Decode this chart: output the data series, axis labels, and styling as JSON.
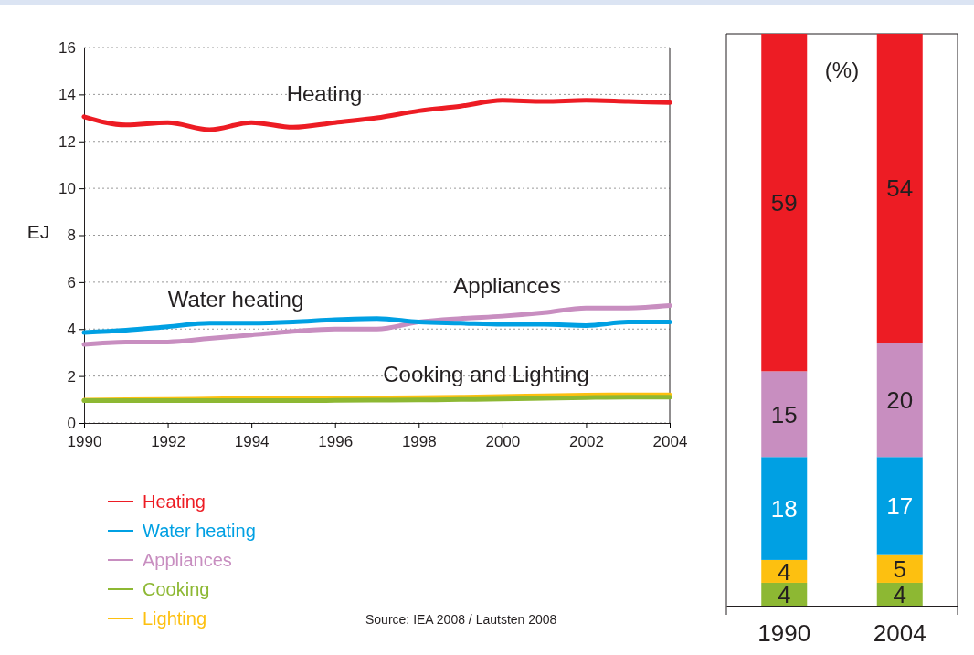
{
  "chart_data": [
    {
      "type": "line",
      "ylabel": "EJ",
      "x": [
        1990,
        1991,
        1992,
        1993,
        1994,
        1995,
        1996,
        1997,
        1998,
        1999,
        2000,
        2001,
        2002,
        2003,
        2004
      ],
      "xlim": [
        1990,
        2004
      ],
      "xticks": [
        1990,
        1992,
        1994,
        1996,
        1998,
        2000,
        2002,
        2004
      ],
      "ylim": [
        0,
        16
      ],
      "yticks": [
        0,
        2,
        4,
        6,
        8,
        10,
        12,
        14,
        16
      ],
      "grid": "y",
      "legend": "bottom",
      "line_style": "solid",
      "marker": "none",
      "series": [
        {
          "name": "Heating",
          "color": "#ed1c24",
          "values": [
            13.05,
            12.7,
            12.8,
            12.5,
            12.8,
            12.6,
            12.8,
            13.0,
            13.3,
            13.5,
            13.75,
            13.7,
            13.75,
            13.7,
            13.65
          ]
        },
        {
          "name": "Water heating",
          "color": "#00a0e3",
          "values": [
            3.85,
            3.95,
            4.1,
            4.25,
            4.25,
            4.3,
            4.4,
            4.45,
            4.3,
            4.25,
            4.2,
            4.2,
            4.15,
            4.3,
            4.3
          ]
        },
        {
          "name": "Appliances",
          "color": "#c88ec0",
          "values": [
            3.35,
            3.45,
            3.45,
            3.6,
            3.75,
            3.9,
            4.0,
            4.0,
            4.3,
            4.45,
            4.55,
            4.7,
            4.9,
            4.9,
            5.0
          ]
        },
        {
          "name": "Cooking",
          "color": "#8db833",
          "values": [
            0.95,
            0.95,
            0.95,
            0.95,
            0.95,
            0.95,
            0.96,
            0.97,
            0.98,
            1.0,
            1.02,
            1.05,
            1.08,
            1.1,
            1.1
          ]
        },
        {
          "name": "Lighting",
          "color": "#fdc010",
          "values": [
            0.97,
            0.99,
            1.0,
            1.02,
            1.04,
            1.05,
            1.06,
            1.07,
            1.08,
            1.1,
            1.13,
            1.16,
            1.19,
            1.2,
            1.2
          ]
        }
      ],
      "annotations": [
        "Heating",
        "Water heating",
        "Appliances",
        "Cooking and Lighting",
        "Source: IEA 2008 / Lautsten 2008"
      ]
    },
    {
      "type": "bar",
      "stacked": true,
      "categories": [
        "1990",
        "2004"
      ],
      "ylim": [
        0,
        100
      ],
      "tick_labels": "x",
      "data_labels": true,
      "ylabel": "(%)",
      "series": [
        {
          "color": "#8db833",
          "values": [
            4,
            4
          ]
        },
        {
          "color": "#fdc010",
          "values": [
            4,
            5
          ]
        },
        {
          "color": "#00a0e3",
          "values": [
            18,
            17
          ]
        },
        {
          "color": "#c88ec0",
          "values": [
            15,
            20
          ]
        },
        {
          "color": "#ed1c24",
          "values": [
            59,
            54
          ]
        }
      ]
    }
  ]
}
